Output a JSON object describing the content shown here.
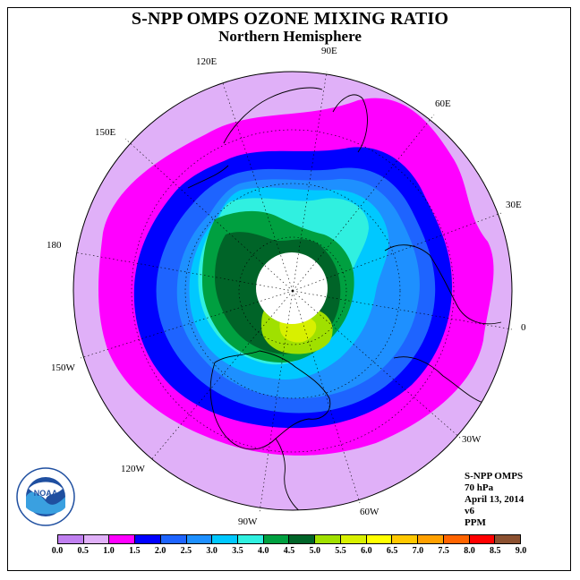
{
  "header": {
    "title": "S-NPP OMPS OZONE MIXING RATIO",
    "subtitle": "Northern Hemisphere"
  },
  "longitude_labels": [
    {
      "text": "90E",
      "id": "lon-90e"
    },
    {
      "text": "60E",
      "id": "lon-60e"
    },
    {
      "text": "120E",
      "id": "lon-120e"
    },
    {
      "text": "150E",
      "id": "lon-150e"
    },
    {
      "text": "30E",
      "id": "lon-30e"
    },
    {
      "text": "180",
      "id": "lon-180"
    },
    {
      "text": "0",
      "id": "lon-0"
    },
    {
      "text": "150W",
      "id": "lon-150w"
    },
    {
      "text": "30W",
      "id": "lon-30w"
    },
    {
      "text": "120W",
      "id": "lon-120w"
    },
    {
      "text": "60W",
      "id": "lon-60w"
    },
    {
      "text": "90W",
      "id": "lon-90w"
    }
  ],
  "info": {
    "instrument": "S-NPP OMPS",
    "level": "70 hPa",
    "date": "April 13, 2014",
    "version": "v6",
    "units": "PPM"
  },
  "colorbar": {
    "ticks": [
      "0.0",
      "0.5",
      "1.0",
      "1.5",
      "2.0",
      "2.5",
      "3.0",
      "3.5",
      "4.0",
      "4.5",
      "5.0",
      "5.5",
      "6.0",
      "6.5",
      "7.0",
      "7.5",
      "8.0",
      "8.5",
      "9.0"
    ],
    "colors": [
      "#c080f0",
      "#e0b0f8",
      "#ff00ff",
      "#0000ff",
      "#1e64ff",
      "#1e90ff",
      "#00c8ff",
      "#30f0e0",
      "#00a040",
      "#006428",
      "#a0e000",
      "#d8f000",
      "#ffff00",
      "#ffc800",
      "#ffa000",
      "#ff6400",
      "#ff0000",
      "#8b5030"
    ]
  },
  "logo": {
    "text": "NOAA",
    "ring_text": "NATIONAL OCEANIC AND ATMOSPHERIC ADMINISTRATION · U.S. DEPARTMENT OF COMMERCE"
  }
}
